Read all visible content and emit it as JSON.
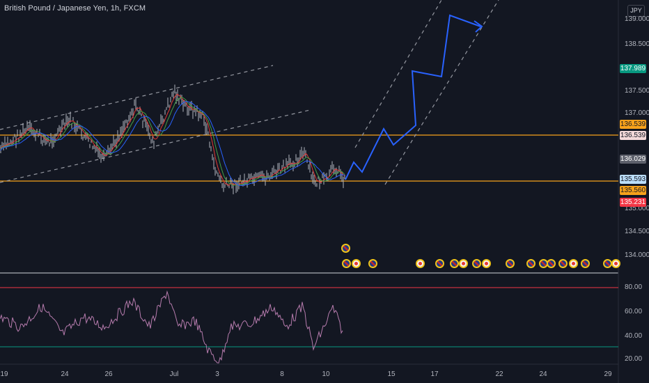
{
  "chart": {
    "title": "British Pound / Japanese Yen, 1h, FXCM",
    "currency": "JPY"
  },
  "price_axis": {
    "labels": [
      "139.000",
      "138.500",
      "137.500",
      "137.000",
      "135.000",
      "134.500",
      "134.000"
    ]
  },
  "price_badges": [
    {
      "text": "137.989",
      "bg": "#089981",
      "fg": "#ffffff"
    },
    {
      "text": "136.539",
      "bg": "#f7a21b",
      "fg": "#131722"
    },
    {
      "text": "136.539",
      "bg": "#f3d9d9",
      "fg": "#131722"
    },
    {
      "text": "136.029",
      "bg": "#5d606b",
      "fg": "#ffffff"
    },
    {
      "text": "135.593",
      "bg": "#bbdefb",
      "fg": "#131722"
    },
    {
      "text": "135.560",
      "bg": "#f7a21b",
      "fg": "#131722"
    },
    {
      "text": "135.231",
      "bg": "#f23645",
      "fg": "#ffffff"
    }
  ],
  "rsi_axis": {
    "labels": [
      "80.00",
      "60.00",
      "40.00",
      "20.00"
    ]
  },
  "time_axis": {
    "labels": [
      "19",
      "24",
      "26",
      "Jul",
      "3",
      "8",
      "10",
      "15",
      "17",
      "22",
      "24",
      "29"
    ]
  },
  "colors": {
    "background": "#131722",
    "orange_line": "#f7a21b",
    "projection": "#2962ff",
    "rsi_line": "#b77cae",
    "rsi_upper": "#f23645",
    "rsi_lower": "#089981"
  },
  "events": [
    "gb",
    "jp",
    "gb",
    "jp",
    "gb",
    "gb",
    "jp",
    "gb",
    "jp",
    "gb",
    "gb",
    "gb",
    "gb",
    "gb",
    "jp",
    "gb",
    "gb",
    "jp",
    "jp",
    "gb"
  ]
}
